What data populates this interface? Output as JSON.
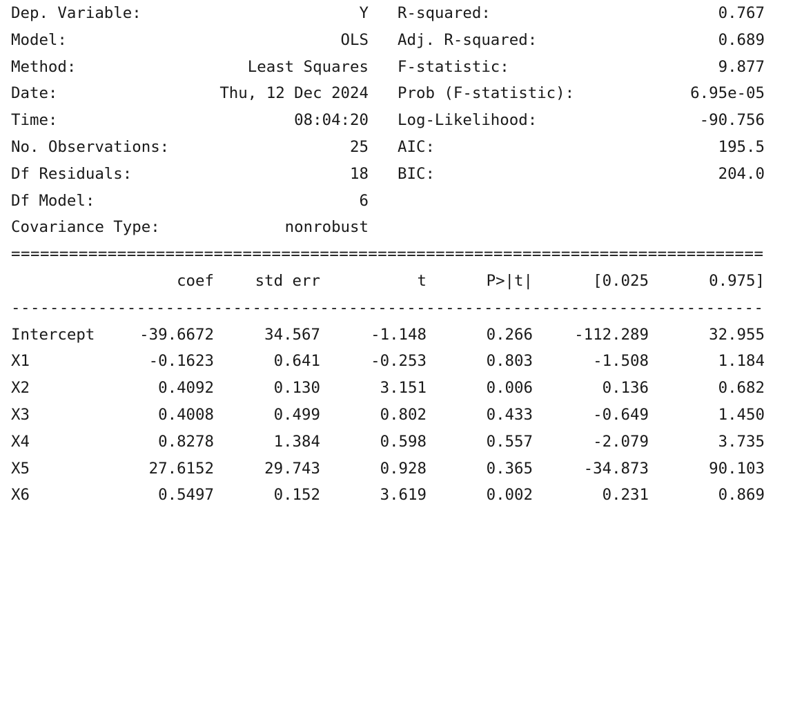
{
  "summary": {
    "left": [
      {
        "label": "Dep. Variable:",
        "value": "Y"
      },
      {
        "label": "Model:",
        "value": "OLS"
      },
      {
        "label": "Method:",
        "value": "Least Squares"
      },
      {
        "label": "Date:",
        "value": "Thu, 12 Dec 2024"
      },
      {
        "label": "Time:",
        "value": "08:04:20"
      },
      {
        "label": "No. Observations:",
        "value": "25"
      },
      {
        "label": "Df Residuals:",
        "value": "18"
      },
      {
        "label": "Df Model:",
        "value": "6"
      },
      {
        "label": "Covariance Type:",
        "value": "nonrobust"
      }
    ],
    "right": [
      {
        "label": "R-squared:",
        "value": "0.767"
      },
      {
        "label": "Adj. R-squared:",
        "value": "0.689"
      },
      {
        "label": "F-statistic:",
        "value": "9.877"
      },
      {
        "label": "Prob (F-statistic):",
        "value": "6.95e-05"
      },
      {
        "label": "Log-Likelihood:",
        "value": "-90.756"
      },
      {
        "label": "AIC:",
        "value": "195.5"
      },
      {
        "label": "BIC:",
        "value": "204.0"
      }
    ]
  },
  "rules": {
    "double": "==============================================================================",
    "single": "------------------------------------------------------------------------------"
  },
  "coef_table": {
    "headers": [
      "",
      "coef",
      "std err",
      "t",
      "P>|t|",
      "[0.025",
      "0.975]"
    ],
    "rows": [
      [
        "Intercept",
        "-39.6672",
        "34.567",
        "-1.148",
        "0.266",
        "-112.289",
        "32.955"
      ],
      [
        "X1",
        "-0.1623",
        "0.641",
        "-0.253",
        "0.803",
        "-1.508",
        "1.184"
      ],
      [
        "X2",
        "0.4092",
        "0.130",
        "3.151",
        "0.006",
        "0.136",
        "0.682"
      ],
      [
        "X3",
        "0.4008",
        "0.499",
        "0.802",
        "0.433",
        "-0.649",
        "1.450"
      ],
      [
        "X4",
        "0.8278",
        "1.384",
        "0.598",
        "0.557",
        "-2.079",
        "3.735"
      ],
      [
        "X5",
        "27.6152",
        "29.743",
        "0.928",
        "0.365",
        "-34.873",
        "90.103"
      ],
      [
        "X6",
        "0.5497",
        "0.152",
        "3.619",
        "0.002",
        "0.231",
        "0.869"
      ]
    ]
  }
}
